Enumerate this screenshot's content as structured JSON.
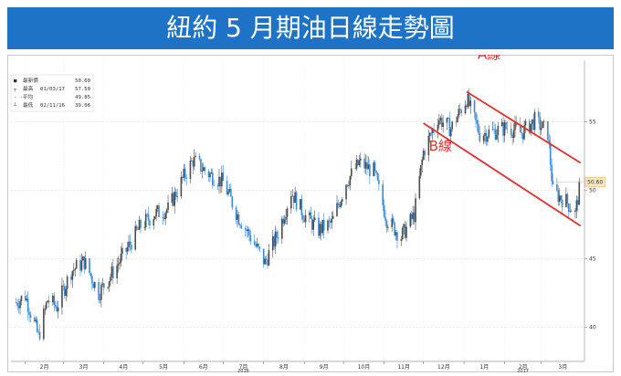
{
  "title": "紐約 5 月期油日線走勢圖",
  "colors": {
    "title_bg": "#1e73c6",
    "up": "#4c4c4c",
    "down": "#3a8ad6",
    "channel": "#e23030",
    "last_box": "#f5e9c8"
  },
  "legend": [
    {
      "marker": "■",
      "label": "最新價",
      "date": "",
      "value": "50.60"
    },
    {
      "marker": "┬",
      "label": "最高",
      "date": "01/03/17",
      "value": "57.50"
    },
    {
      "marker": "- -",
      "label": "平均",
      "date": "",
      "value": "49.85"
    },
    {
      "marker": "┴",
      "label": "最低",
      "date": "02/11/16",
      "value": "39.06"
    }
  ],
  "chart_data": {
    "type": "candlestick",
    "title": "紐約 5 月期油日線走勢圖",
    "ylim": [
      37.5,
      59.5
    ],
    "y_ticks": [
      40,
      45,
      50,
      55
    ],
    "x_ticks": [
      "2月",
      "3月",
      "4月",
      "5月",
      "6月",
      "7月",
      "8月",
      "9月",
      "10月",
      "11月",
      "12月",
      "1月",
      "2月",
      "3月"
    ],
    "year_labels": [
      {
        "after": "7月",
        "label": "2016"
      },
      {
        "after": "2月",
        "label": "2017"
      }
    ],
    "last_price": 50.6,
    "last_price_label": "50.60",
    "channel_lines": [
      {
        "label": "A線",
        "from": [
          "2017-01-03",
          57.2
        ],
        "to": [
          "2017-03-31",
          52.0
        ]
      },
      {
        "label": "B線",
        "from": [
          "2016-12-01",
          54.9
        ],
        "to": [
          "2017-03-31",
          47.4
        ]
      }
    ],
    "close_path": [
      [
        "2016-01-25",
        41.8
      ],
      [
        "2016-02-01",
        42.3
      ],
      [
        "2016-02-11",
        39.3
      ],
      [
        "2016-02-18",
        42.0
      ],
      [
        "2016-02-25",
        41.5
      ],
      [
        "2016-03-07",
        44.1
      ],
      [
        "2016-03-17",
        44.8
      ],
      [
        "2016-03-28",
        42.5
      ],
      [
        "2016-04-05",
        43.6
      ],
      [
        "2016-04-18",
        45.6
      ],
      [
        "2016-04-29",
        47.4
      ],
      [
        "2016-05-10",
        48.3
      ],
      [
        "2016-05-20",
        48.6
      ],
      [
        "2016-05-31",
        50.8
      ],
      [
        "2016-06-08",
        52.2
      ],
      [
        "2016-06-20",
        51.2
      ],
      [
        "2016-07-01",
        50.6
      ],
      [
        "2016-07-12",
        48.2
      ],
      [
        "2016-07-22",
        46.6
      ],
      [
        "2016-08-02",
        44.7
      ],
      [
        "2016-08-12",
        46.9
      ],
      [
        "2016-08-22",
        49.9
      ],
      [
        "2016-09-01",
        48.2
      ],
      [
        "2016-09-12",
        47.1
      ],
      [
        "2016-09-22",
        47.6
      ],
      [
        "2016-10-03",
        50.6
      ],
      [
        "2016-10-13",
        52.0
      ],
      [
        "2016-10-24",
        51.4
      ],
      [
        "2016-11-03",
        47.9
      ],
      [
        "2016-11-14",
        46.6
      ],
      [
        "2016-11-24",
        48.2
      ],
      [
        "2016-12-01",
        52.8
      ],
      [
        "2016-12-12",
        55.3
      ],
      [
        "2016-12-22",
        54.5
      ],
      [
        "2017-01-03",
        56.7
      ],
      [
        "2017-01-13",
        54.1
      ],
      [
        "2017-01-24",
        54.3
      ],
      [
        "2017-02-03",
        54.6
      ],
      [
        "2017-02-14",
        54.2
      ],
      [
        "2017-02-24",
        55.1
      ],
      [
        "2017-03-06",
        54.2
      ],
      [
        "2017-03-10",
        49.9
      ],
      [
        "2017-03-20",
        49.2
      ],
      [
        "2017-03-27",
        48.3
      ],
      [
        "2017-03-31",
        50.6
      ]
    ]
  }
}
